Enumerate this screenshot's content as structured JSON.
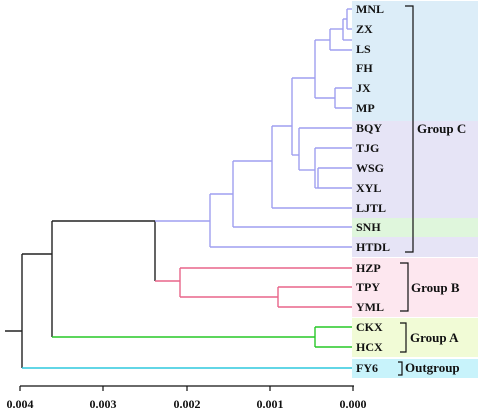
{
  "colors": {
    "group_c_line": "#9f9ff0",
    "group_b_line": "#e8658a",
    "group_a_line": "#27c827",
    "outgroup_line": "#2ec9de",
    "root_line": "#222222",
    "group_c_bg_blue": "#dcedf8",
    "group_c_bg_lavender": "#e6e4f6",
    "group_c_bg_green": "#dff6dc",
    "group_b_bg": "#fde7ef",
    "group_a_bg": "#f1fbd6",
    "outgroup_bg": "#c8f3fb"
  },
  "leaves": [
    "MNL",
    "ZX",
    "LS",
    "FH",
    "JX",
    "MP",
    "BQY",
    "TJG",
    "WSG",
    "XYL",
    "LJTL",
    "SNH",
    "HTDL",
    "HZP",
    "TPY",
    "YML",
    "CKX",
    "HCX",
    "FY6"
  ],
  "groups": [
    {
      "label": "Group C"
    },
    {
      "label": "Group B"
    },
    {
      "label": "Group A"
    },
    {
      "label": "Outgroup"
    }
  ],
  "axis": {
    "ticks": [
      "0.004",
      "0.003",
      "0.002",
      "0.001",
      "0.000"
    ]
  }
}
